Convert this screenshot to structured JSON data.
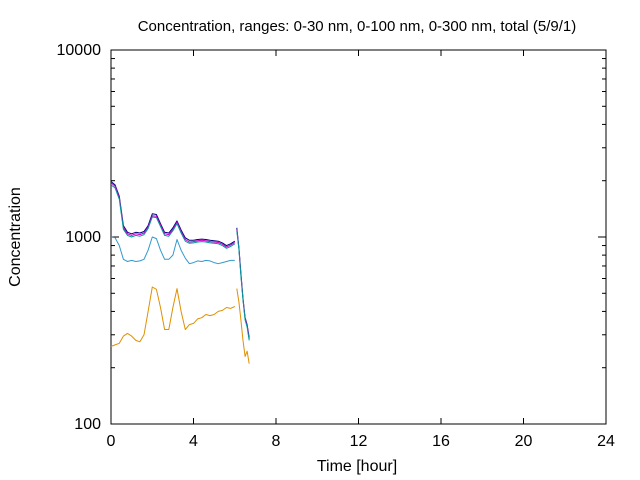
{
  "chart_data": {
    "type": "line",
    "title": "Concentration, ranges: 0-30 nm, 0-100 nm, 0-300 nm, total (5/9/1)",
    "xlabel": "Time [hour]",
    "ylabel": "Concentration",
    "xlim": [
      0,
      24
    ],
    "ylim": [
      100,
      10000
    ],
    "yscale": "log",
    "grid": false,
    "x_ticks": [
      0,
      4,
      8,
      12,
      16,
      20,
      24
    ],
    "x_tick_labels": [
      "0",
      "4",
      "8",
      "12",
      "16",
      "20",
      "24"
    ],
    "y_ticks": [
      100,
      1000,
      10000
    ],
    "y_tick_labels": [
      "100",
      "1000",
      "10000"
    ],
    "series": [
      {
        "color": "#000080",
        "x": [
          0,
          0.2,
          0.4,
          0.6,
          0.8,
          1.0,
          1.2,
          1.4,
          1.6,
          1.8,
          2.0,
          2.2,
          2.4,
          2.6,
          2.8,
          3.0,
          3.2,
          3.4,
          3.6,
          3.8,
          4.0,
          4.2,
          4.4,
          4.6,
          4.8,
          5.0,
          5.2,
          5.4,
          5.6,
          5.8,
          6.0,
          null,
          6.1,
          6.2,
          6.3,
          6.4,
          6.5,
          6.6,
          6.7
        ],
        "values": [
          1980,
          1900,
          1650,
          1150,
          1060,
          1040,
          1060,
          1050,
          1070,
          1150,
          1330,
          1320,
          1180,
          1060,
          1050,
          1120,
          1220,
          1090,
          990,
          960,
          960,
          970,
          975,
          970,
          960,
          955,
          950,
          930,
          900,
          920,
          950,
          null,
          1120,
          880,
          640,
          470,
          370,
          340,
          290
        ]
      },
      {
        "color": "#cc00cc",
        "x": [
          0,
          0.2,
          0.4,
          0.6,
          0.8,
          1.0,
          1.2,
          1.4,
          1.6,
          1.8,
          2.0,
          2.2,
          2.4,
          2.6,
          2.8,
          3.0,
          3.2,
          3.4,
          3.6,
          3.8,
          4.0,
          4.2,
          4.4,
          4.6,
          4.8,
          5.0,
          5.2,
          5.4,
          5.6,
          5.8,
          6.0,
          null,
          6.1,
          6.2,
          6.3,
          6.4,
          6.5,
          6.6,
          6.7
        ],
        "values": [
          1950,
          1870,
          1620,
          1120,
          1040,
          1020,
          1040,
          1030,
          1050,
          1130,
          1300,
          1290,
          1160,
          1040,
          1030,
          1100,
          1200,
          1070,
          970,
          940,
          945,
          955,
          960,
          955,
          945,
          940,
          935,
          915,
          885,
          905,
          935,
          null,
          1100,
          870,
          630,
          465,
          365,
          335,
          285
        ]
      },
      {
        "color": "#009999",
        "x": [
          0,
          0.2,
          0.4,
          0.6,
          0.8,
          1.0,
          1.2,
          1.4,
          1.6,
          1.8,
          2.0,
          2.2,
          2.4,
          2.6,
          2.8,
          3.0,
          3.2,
          3.4,
          3.6,
          3.8,
          4.0,
          4.2,
          4.4,
          4.6,
          4.8,
          5.0,
          5.2,
          5.4,
          5.6,
          5.8,
          6.0,
          null,
          6.1,
          6.2,
          6.3,
          6.4,
          6.5,
          6.6,
          6.7
        ],
        "values": [
          1900,
          1830,
          1590,
          1100,
          1020,
          1000,
          1020,
          1010,
          1030,
          1110,
          1280,
          1270,
          1140,
          1020,
          1010,
          1080,
          1180,
          1050,
          950,
          925,
          930,
          940,
          945,
          940,
          930,
          925,
          920,
          900,
          870,
          890,
          920,
          null,
          1080,
          860,
          620,
          460,
          360,
          330,
          280
        ]
      },
      {
        "color": "#3399cc",
        "x": [
          0,
          0.2,
          0.4,
          0.6,
          0.8,
          1.0,
          1.2,
          1.4,
          1.6,
          1.8,
          2.0,
          2.2,
          2.4,
          2.6,
          2.8,
          3.0,
          3.2,
          3.4,
          3.6,
          3.8,
          4.0,
          4.2,
          4.4,
          4.6,
          4.8,
          5.0,
          5.2,
          5.4,
          5.6,
          5.8,
          6.0
        ],
        "values": [
          1000,
          990,
          900,
          760,
          740,
          750,
          740,
          745,
          760,
          850,
          1000,
          980,
          850,
          760,
          760,
          800,
          970,
          850,
          770,
          720,
          730,
          745,
          740,
          750,
          745,
          730,
          720,
          730,
          740,
          750,
          750
        ]
      },
      {
        "color": "#e09000",
        "x": [
          0,
          0.2,
          0.4,
          0.6,
          0.8,
          1.0,
          1.2,
          1.4,
          1.6,
          1.8,
          2.0,
          2.2,
          2.4,
          2.6,
          2.8,
          3.0,
          3.2,
          3.4,
          3.6,
          3.8,
          4.0,
          4.2,
          4.4,
          4.6,
          4.8,
          5.0,
          5.2,
          5.4,
          5.6,
          5.8,
          6.0,
          null,
          6.1,
          6.2,
          6.3,
          6.4,
          6.5,
          6.6,
          6.7
        ],
        "values": [
          260,
          265,
          270,
          295,
          305,
          295,
          280,
          275,
          300,
          400,
          540,
          525,
          420,
          320,
          320,
          420,
          530,
          400,
          320,
          340,
          345,
          365,
          370,
          385,
          380,
          385,
          400,
          405,
          420,
          415,
          425,
          null,
          530,
          450,
          360,
          280,
          230,
          245,
          210
        ]
      }
    ]
  }
}
